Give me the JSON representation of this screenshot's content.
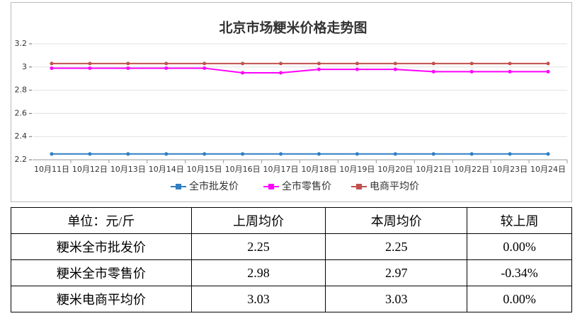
{
  "chart_data": {
    "type": "line",
    "title": "北京市场粳米价格走势图",
    "categories": [
      "10月11日",
      "10月12日",
      "10月13日",
      "10月14日",
      "10月15日",
      "10月16日",
      "10月17日",
      "10月18日",
      "10月19日",
      "10月20日",
      "10月21日",
      "10月22日",
      "10月23日",
      "10月24日"
    ],
    "series": [
      {
        "name": "全市批发价",
        "color": "#2f7fc1",
        "values": [
          2.25,
          2.25,
          2.25,
          2.25,
          2.25,
          2.25,
          2.25,
          2.25,
          2.25,
          2.25,
          2.25,
          2.25,
          2.25,
          2.25
        ]
      },
      {
        "name": "全市零售价",
        "color": "#ff00ff",
        "values": [
          2.99,
          2.99,
          2.99,
          2.99,
          2.99,
          2.95,
          2.95,
          2.98,
          2.98,
          2.98,
          2.96,
          2.96,
          2.96,
          2.96
        ]
      },
      {
        "name": "电商平均价",
        "color": "#c0504d",
        "values": [
          3.03,
          3.03,
          3.03,
          3.03,
          3.03,
          3.03,
          3.03,
          3.03,
          3.03,
          3.03,
          3.03,
          3.03,
          3.03,
          3.03
        ]
      }
    ],
    "ylim": [
      2.2,
      3.2
    ],
    "yticks": [
      2.2,
      2.4,
      2.6,
      2.8,
      3,
      3.2
    ],
    "grid": true,
    "legend": "bottom"
  },
  "table": {
    "header": [
      "单位：元/斤",
      "上周均价",
      "本周均价",
      "较上周"
    ],
    "rows": [
      [
        "粳米全市批发价",
        "2.25",
        "2.25",
        "0.00%"
      ],
      [
        "粳米全市零售价",
        "2.98",
        "2.97",
        "-0.34%"
      ],
      [
        "粳米电商平均价",
        "3.03",
        "3.03",
        "0.00%"
      ]
    ]
  }
}
